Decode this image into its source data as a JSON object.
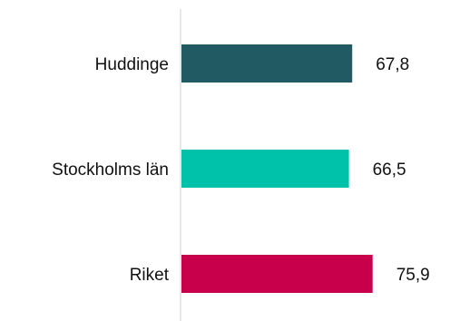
{
  "chart_data": {
    "type": "bar",
    "orientation": "horizontal",
    "categories": [
      "Huddinge",
      "Stockholms län",
      "Riket"
    ],
    "values": [
      67.8,
      66.5,
      75.9
    ],
    "value_labels": [
      "67,8",
      "66,5",
      "75,9"
    ],
    "colors": [
      "#215A63",
      "#00C2AA",
      "#C8004B"
    ],
    "axis_color": "#D0D0D0",
    "xlim": [
      0,
      80
    ],
    "grid": false,
    "legend": "none"
  }
}
